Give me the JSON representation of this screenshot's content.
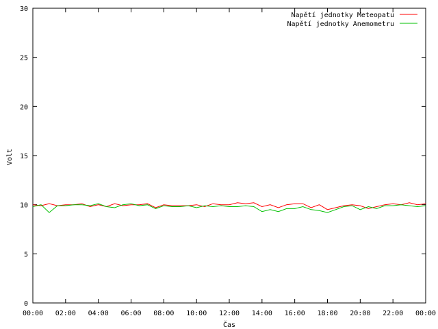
{
  "chart_data": {
    "type": "line",
    "title": "",
    "xlabel": "Čas",
    "ylabel": "Volt",
    "xlim": [
      0,
      24
    ],
    "ylim": [
      0,
      30
    ],
    "grid": false,
    "legend_position": "top-right",
    "x_ticks": [
      {
        "v": 0,
        "label": "00:00"
      },
      {
        "v": 2,
        "label": "02:00"
      },
      {
        "v": 4,
        "label": "04:00"
      },
      {
        "v": 6,
        "label": "06:00"
      },
      {
        "v": 8,
        "label": "08:00"
      },
      {
        "v": 10,
        "label": "10:00"
      },
      {
        "v": 12,
        "label": "12:00"
      },
      {
        "v": 14,
        "label": "14:00"
      },
      {
        "v": 16,
        "label": "16:00"
      },
      {
        "v": 18,
        "label": "18:00"
      },
      {
        "v": 20,
        "label": "20:00"
      },
      {
        "v": 22,
        "label": "22:00"
      },
      {
        "v": 24,
        "label": "00:00"
      }
    ],
    "y_ticks": [
      {
        "v": 0,
        "label": "0"
      },
      {
        "v": 5,
        "label": "5"
      },
      {
        "v": 10,
        "label": "10"
      },
      {
        "v": 15,
        "label": "15"
      },
      {
        "v": 20,
        "label": "20"
      },
      {
        "v": 25,
        "label": "25"
      },
      {
        "v": 30,
        "label": "30"
      }
    ],
    "series": [
      {
        "name": "Napětí jednotky Meteopatu",
        "color": "#ff0000",
        "x": [
          0,
          0.5,
          1,
          1.5,
          2,
          2.5,
          3,
          3.5,
          4,
          4.5,
          5,
          5.5,
          6,
          6.5,
          7,
          7.5,
          8,
          8.5,
          9,
          9.5,
          10,
          10.5,
          11,
          11.5,
          12,
          12.5,
          13,
          13.5,
          14,
          14.5,
          15,
          15.5,
          16,
          16.5,
          17,
          17.5,
          18,
          18.5,
          19,
          19.5,
          20,
          20.5,
          21,
          21.5,
          22,
          22.5,
          23,
          23.5,
          24
        ],
        "y": [
          10.0,
          9.9,
          10.1,
          9.9,
          10.0,
          10.0,
          10.1,
          9.8,
          10.0,
          9.8,
          10.1,
          9.9,
          10.0,
          10.0,
          10.1,
          9.7,
          10.0,
          9.9,
          9.9,
          9.9,
          10.0,
          9.8,
          10.1,
          10.0,
          10.0,
          10.2,
          10.1,
          10.2,
          9.8,
          10.0,
          9.7,
          10.0,
          10.1,
          10.1,
          9.7,
          10.0,
          9.5,
          9.7,
          9.9,
          10.0,
          9.9,
          9.6,
          9.8,
          10.0,
          10.1,
          10.0,
          10.2,
          10.0,
          10.1
        ]
      },
      {
        "name": "Napětí jednotky Anemometru",
        "color": "#00c000",
        "x": [
          0,
          0.5,
          1,
          1.5,
          2,
          2.5,
          3,
          3.5,
          4,
          4.5,
          5,
          5.5,
          6,
          6.5,
          7,
          7.5,
          8,
          8.5,
          9,
          9.5,
          10,
          10.5,
          11,
          11.5,
          12,
          12.5,
          13,
          13.5,
          14,
          14.5,
          15,
          15.5,
          16,
          16.5,
          17,
          17.5,
          18,
          18.5,
          19,
          19.5,
          20,
          20.5,
          21,
          21.5,
          22,
          22.5,
          23,
          23.5,
          24
        ],
        "y": [
          9.8,
          10.0,
          9.2,
          9.9,
          9.9,
          10.0,
          10.0,
          9.9,
          10.1,
          9.8,
          9.7,
          10.0,
          10.1,
          9.9,
          10.0,
          9.6,
          9.9,
          9.8,
          9.8,
          9.9,
          9.7,
          9.9,
          9.8,
          9.9,
          9.8,
          9.8,
          9.9,
          9.8,
          9.3,
          9.5,
          9.3,
          9.6,
          9.6,
          9.8,
          9.5,
          9.4,
          9.2,
          9.5,
          9.8,
          9.9,
          9.5,
          9.8,
          9.6,
          9.9,
          9.9,
          10.0,
          9.9,
          9.8,
          9.9
        ]
      }
    ]
  }
}
